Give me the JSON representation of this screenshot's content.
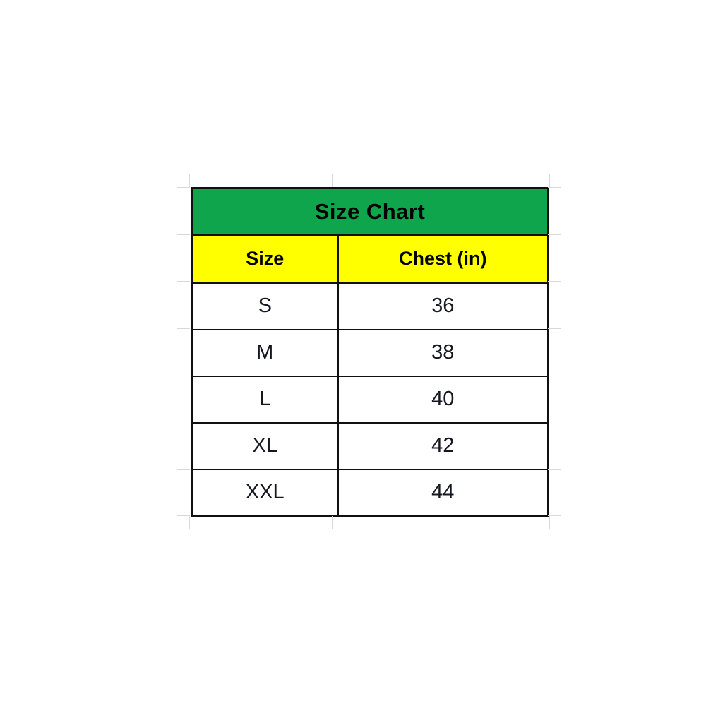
{
  "page": {
    "background_color": "#ffffff",
    "description_colors": {
      "title_background": "#0FA54C",
      "header_background": "#FFFF00",
      "cell_background": "#ffffff",
      "border": "#101010",
      "gridline": "#d9d9d9",
      "text": "#000000"
    }
  },
  "table": {
    "title": "Size Chart",
    "columns": [
      "Size",
      "Chest (in)"
    ],
    "rows": [
      [
        "S",
        "36"
      ],
      [
        "M",
        "38"
      ],
      [
        "L",
        "40"
      ],
      [
        "XL",
        "42"
      ],
      [
        "XXL",
        "44"
      ]
    ]
  },
  "chart_data": {
    "type": "table",
    "title": "Size Chart",
    "columns": [
      "Size",
      "Chest (in)"
    ],
    "rows": [
      {
        "size": "S",
        "chest_in": 36
      },
      {
        "size": "M",
        "chest_in": 38
      },
      {
        "size": "L",
        "chest_in": 40
      },
      {
        "size": "XL",
        "chest_in": 42
      },
      {
        "size": "XXL",
        "chest_in": 44
      }
    ],
    "layout": {
      "header_row_fill": "#FFFF00",
      "title_row_fill": "#0FA54C",
      "grid": "on",
      "alignment": "center"
    }
  }
}
